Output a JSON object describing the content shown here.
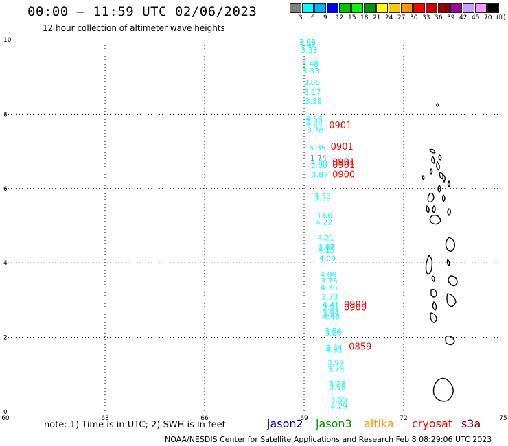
{
  "header": {
    "title": "00:00 – 11:59 UTC 02/06/2023",
    "subtitle": "12 hour collection of altimeter wave heights"
  },
  "colorbar": {
    "colors": [
      "#808080",
      "#00ffff",
      "#00b4ff",
      "#0000ff",
      "#00c800",
      "#00ff00",
      "#009600",
      "#ffff00",
      "#ffc800",
      "#ff9600",
      "#ff0000",
      "#c80000",
      "#960000",
      "#a000a0",
      "#c8a0ff",
      "#ff96ff",
      "#000000"
    ],
    "labels": [
      "3",
      "6",
      "9",
      "12",
      "15",
      "18",
      "21",
      "24",
      "27",
      "30",
      "33",
      "36",
      "39",
      "42",
      "45",
      "70",
      "(ft)"
    ]
  },
  "axes": {
    "x_ticks": [
      "60",
      "63",
      "66",
      "69",
      "72",
      "75"
    ],
    "y_ticks": [
      "0",
      "2",
      "4",
      "6",
      "8",
      "10"
    ]
  },
  "wave_points": [
    {
      "v": "3.05",
      "lon": 68.85,
      "lat": 9.87
    },
    {
      "v": "3.42",
      "lon": 68.85,
      "lat": 9.8
    },
    {
      "v": "3.33",
      "lon": 68.9,
      "lat": 9.65
    },
    {
      "v": "3.48",
      "lon": 68.93,
      "lat": 9.28
    },
    {
      "v": "3.33",
      "lon": 68.95,
      "lat": 9.1
    },
    {
      "v": "3.85",
      "lon": 68.98,
      "lat": 8.78
    },
    {
      "v": "3.17",
      "lon": 69.0,
      "lat": 8.52
    },
    {
      "v": "3.38",
      "lon": 69.03,
      "lat": 8.28
    },
    {
      "v": "4.56",
      "lon": 69.05,
      "lat": 7.8
    },
    {
      "v": "4.33",
      "lon": 69.05,
      "lat": 7.68
    },
    {
      "v": "3.78",
      "lon": 69.08,
      "lat": 7.5
    },
    {
      "v": "5.35",
      "lon": 69.15,
      "lat": 7.03
    },
    {
      "v": "1.74",
      "lon": 69.18,
      "lat": 6.75
    },
    {
      "v": "4.09",
      "lon": 69.2,
      "lat": 6.62
    },
    {
      "v": "3.68",
      "lon": 69.2,
      "lat": 6.55
    },
    {
      "v": "3.87",
      "lon": 69.22,
      "lat": 6.3
    },
    {
      "v": "3.33",
      "lon": 69.3,
      "lat": 5.73
    },
    {
      "v": "3.39",
      "lon": 69.3,
      "lat": 5.67
    },
    {
      "v": "3.60",
      "lon": 69.35,
      "lat": 5.2
    },
    {
      "v": "4.22",
      "lon": 69.35,
      "lat": 5.03
    },
    {
      "v": "4.21",
      "lon": 69.4,
      "lat": 4.6
    },
    {
      "v": "3.87",
      "lon": 69.42,
      "lat": 4.35
    },
    {
      "v": "4.15",
      "lon": 69.42,
      "lat": 4.28
    },
    {
      "v": "4.09",
      "lon": 69.45,
      "lat": 4.05
    },
    {
      "v": "4.09",
      "lon": 69.48,
      "lat": 3.62
    },
    {
      "v": "3.76",
      "lon": 69.5,
      "lat": 3.45
    },
    {
      "v": "4.76",
      "lon": 69.5,
      "lat": 3.27
    },
    {
      "v": "3.73",
      "lon": 69.52,
      "lat": 3.02
    },
    {
      "v": "4.41",
      "lon": 69.55,
      "lat": 2.8
    },
    {
      "v": "3.51",
      "lon": 69.55,
      "lat": 2.73
    },
    {
      "v": "3.94",
      "lon": 69.55,
      "lat": 2.58
    },
    {
      "v": "4.48",
      "lon": 69.57,
      "lat": 2.48
    },
    {
      "v": "3.84",
      "lon": 69.62,
      "lat": 2.1
    },
    {
      "v": "3.66",
      "lon": 69.62,
      "lat": 2.04
    },
    {
      "v": "3.34",
      "lon": 69.65,
      "lat": 1.65
    },
    {
      "v": "4.31",
      "lon": 69.65,
      "lat": 1.6
    },
    {
      "v": "3.97",
      "lon": 69.7,
      "lat": 1.25
    },
    {
      "v": "3.78",
      "lon": 69.7,
      "lat": 1.08
    },
    {
      "v": "3.28",
      "lon": 69.75,
      "lat": 0.68
    },
    {
      "v": "3.58",
      "lon": 69.75,
      "lat": 0.58
    },
    {
      "v": "3.55",
      "lon": 69.8,
      "lat": 0.25
    },
    {
      "v": "4.29",
      "lon": 69.8,
      "lat": 0.08
    }
  ],
  "time_labels": [
    {
      "t": "0901",
      "lon": 69.75,
      "lat": 7.62
    },
    {
      "t": "0901",
      "lon": 69.8,
      "lat": 7.05
    },
    {
      "t": "0901",
      "lon": 69.85,
      "lat": 6.63
    },
    {
      "t": "0901",
      "lon": 69.85,
      "lat": 6.55
    },
    {
      "t": "0900",
      "lon": 69.85,
      "lat": 6.3
    },
    {
      "t": "0900",
      "lon": 70.2,
      "lat": 2.8
    },
    {
      "t": "0900",
      "lon": 70.2,
      "lat": 2.72
    },
    {
      "t": "0859",
      "lon": 70.35,
      "lat": 1.67
    }
  ],
  "footer": {
    "note": "note: 1) Time is in UTC; 2) SWH is in feet",
    "satellites": [
      {
        "name": "jason2",
        "color": "#0000c8"
      },
      {
        "name": "jason3",
        "color": "#009600"
      },
      {
        "name": "altika",
        "color": "#ff9600"
      },
      {
        "name": "cryosat",
        "color": "#ff0000"
      },
      {
        "name": "s3a",
        "color": "#960000"
      }
    ],
    "credit": "NOAA/NESDIS Center for Satellite Applications and Research    Feb  8 08:29:06 UTC 2023"
  }
}
